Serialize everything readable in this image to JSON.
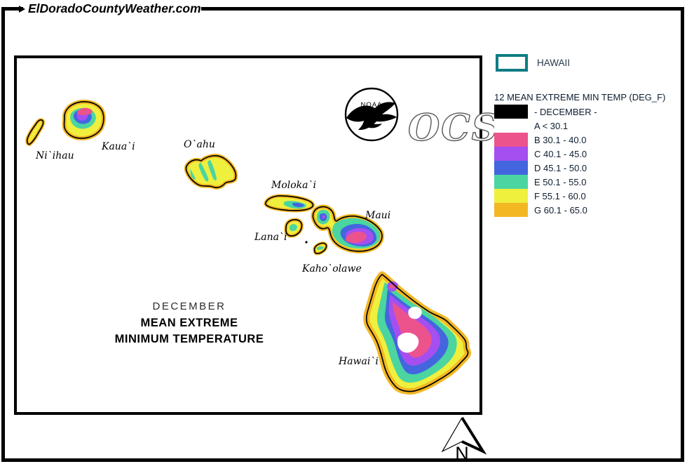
{
  "banner": {
    "title": "ElDoradoCountyWeather.com"
  },
  "map": {
    "islands": [
      {
        "name": "niihau",
        "label": "Ni`ihau"
      },
      {
        "name": "kauai",
        "label": "Kaua`i"
      },
      {
        "name": "oahu",
        "label": "O`ahu"
      },
      {
        "name": "molokai",
        "label": "Moloka`i"
      },
      {
        "name": "lanai",
        "label": "Lana`i"
      },
      {
        "name": "maui",
        "label": "Maui"
      },
      {
        "name": "kahoolawe",
        "label": "Kaho`olawe"
      },
      {
        "name": "hawaii",
        "label": "Hawai`i"
      }
    ],
    "title_lines": [
      "DECEMBER",
      "MEAN EXTREME",
      "MINIMUM TEMPERATURE"
    ],
    "noaa_logo_text": "NOAA",
    "ocs_text": "OCS",
    "north_label": "N"
  },
  "legend": {
    "state_label": "HAWAII",
    "state_box_border": "#0E7C84",
    "title": "12 MEAN EXTREME MIN TEMP (DEG_F)",
    "entries": [
      {
        "label": "- DECEMBER -",
        "color": "#000000"
      },
      {
        "label": "A < 30.1",
        "color": "#FFFFFF"
      },
      {
        "label": "B 30.1 - 40.0",
        "color": "#EC538C"
      },
      {
        "label": "C 40.1 - 45.0",
        "color": "#A54FF1"
      },
      {
        "label": "D 45.1 - 50.0",
        "color": "#4366DF"
      },
      {
        "label": "E 50.1 - 55.0",
        "color": "#4AD5A1"
      },
      {
        "label": "F 55.1 - 60.0",
        "color": "#EFEF3E"
      },
      {
        "label": "G 60.1 - 65.0",
        "color": "#F3B722"
      }
    ],
    "palette": {
      "pink": "#EC538C",
      "purple": "#A54FF1",
      "blue": "#4366DF",
      "green": "#4AD5A1",
      "yellow": "#EFEF3E",
      "orange": "#F3B722"
    }
  }
}
